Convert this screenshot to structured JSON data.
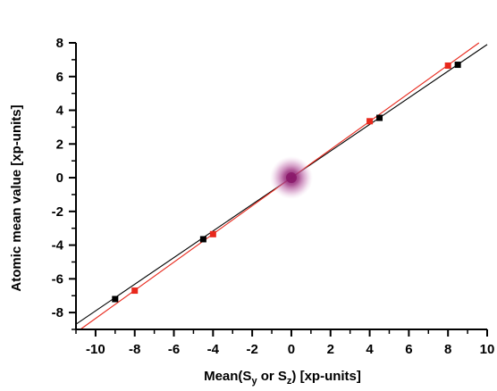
{
  "chart_data": {
    "type": "scatter",
    "xlabel": {
      "pre": "Mean(S",
      "sub1": "y",
      "mid": " or S",
      "sub2": "z",
      "post": ") [xp-units]"
    },
    "ylabel": "Atomic mean value [xp-units]",
    "xlim": [
      -11,
      10
    ],
    "ylim": [
      -9,
      8
    ],
    "x_ticks": [
      -10,
      -8,
      -6,
      -4,
      -2,
      0,
      2,
      4,
      6,
      8,
      10
    ],
    "y_ticks": [
      -8,
      -6,
      -4,
      -2,
      0,
      2,
      4,
      6,
      8
    ],
    "series": [
      {
        "color": "#000000",
        "marker": "square",
        "x": [
          -9.0,
          -4.5,
          0.0,
          4.5,
          8.5
        ],
        "y": [
          -7.2,
          -3.65,
          0.0,
          3.55,
          6.7
        ]
      },
      {
        "color": "#e8281c",
        "marker": "square",
        "x": [
          -8.0,
          -4.0,
          0.0,
          4.0,
          8.0
        ],
        "y": [
          -6.7,
          -3.35,
          0.0,
          3.35,
          6.65
        ]
      }
    ],
    "fit_lines": [
      {
        "color": "#000000",
        "slope": 0.79,
        "intercept": 0.0
      },
      {
        "color": "#e8281c",
        "slope": 0.835,
        "intercept": 0.0
      }
    ],
    "highlight": {
      "x": 0,
      "y": 0,
      "color": "#8b1a6b"
    },
    "grid": false
  }
}
